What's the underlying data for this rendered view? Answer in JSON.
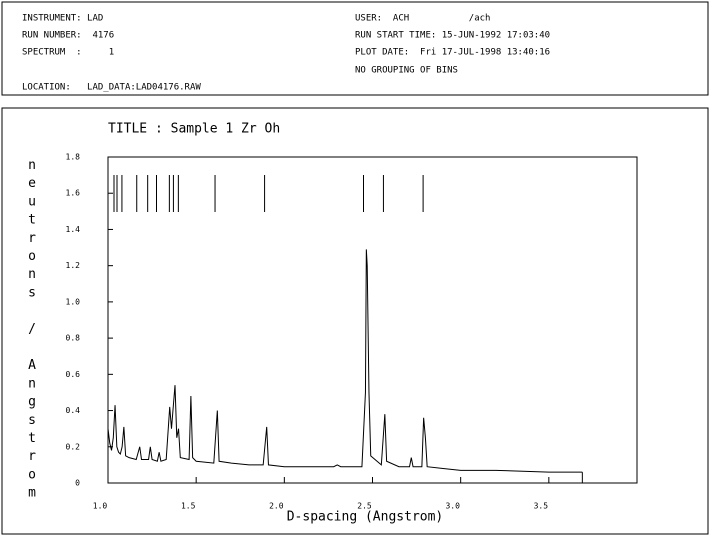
{
  "header": {
    "instrument": "INSTRUMENT: LAD",
    "run_number": "RUN NUMBER:  4176",
    "spectrum": "SPECTRUM  :     1",
    "location": "LOCATION:   LAD_DATA:LAD04176.RAW",
    "user": "USER:  ACH           /ach",
    "run_start": "RUN START TIME: 15-JUN-1992 17:03:40",
    "plot_date": "PLOT DATE:  Fri 17-JUL-1998 13:40:16",
    "grouping": "NO GROUPING OF BINS"
  },
  "chart_data": {
    "type": "line",
    "title": "TITLE : Sample 1 Zr Oh",
    "x_label": "D-spacing (Angstrom)",
    "y_label": "neutrons / Angstrom",
    "xlim": [
      1.0,
      4.0
    ],
    "ylim": [
      0,
      1.8
    ],
    "xticks": [
      {
        "value": 1.0,
        "label": "1.0"
      },
      1.5,
      {
        "value": 2.0,
        "label": "2.0"
      },
      2.5,
      {
        "value": 3.0,
        "label": "3.0"
      },
      3.5
    ],
    "yticks": [
      0,
      0.2,
      0.4,
      0.6,
      0.8,
      {
        "value": 1.0,
        "label": "1.0"
      },
      1.2,
      1.4,
      1.6,
      1.8
    ],
    "reflections": [
      1.034,
      1.051,
      1.079,
      1.163,
      1.225,
      1.275,
      1.348,
      1.371,
      1.399,
      1.607,
      1.888,
      2.449,
      2.562,
      2.787
    ],
    "x": [
      1.0,
      1.01,
      1.02,
      1.03,
      1.04,
      1.05,
      1.06,
      1.07,
      1.08,
      1.09,
      1.1,
      1.12,
      1.16,
      1.18,
      1.19,
      1.23,
      1.24,
      1.25,
      1.28,
      1.29,
      1.3,
      1.33,
      1.35,
      1.36,
      1.38,
      1.39,
      1.4,
      1.41,
      1.46,
      1.47,
      1.48,
      1.5,
      1.6,
      1.62,
      1.63,
      1.7,
      1.8,
      1.88,
      1.9,
      1.91,
      2.0,
      2.1,
      2.2,
      2.28,
      2.3,
      2.32,
      2.44,
      2.46,
      2.465,
      2.47,
      2.48,
      2.49,
      2.55,
      2.57,
      2.58,
      2.65,
      2.71,
      2.72,
      2.73,
      2.78,
      2.79,
      2.8,
      2.81,
      2.9,
      3.0,
      3.2,
      3.5,
      3.69
    ],
    "series": [
      {
        "color": "#000000",
        "values": [
          0.3,
          0.22,
          0.18,
          0.25,
          0.43,
          0.2,
          0.17,
          0.16,
          0.2,
          0.31,
          0.15,
          0.14,
          0.13,
          0.2,
          0.13,
          0.13,
          0.2,
          0.13,
          0.12,
          0.17,
          0.12,
          0.13,
          0.42,
          0.3,
          0.54,
          0.25,
          0.3,
          0.14,
          0.13,
          0.48,
          0.14,
          0.12,
          0.11,
          0.4,
          0.12,
          0.11,
          0.1,
          0.1,
          0.31,
          0.1,
          0.09,
          0.09,
          0.09,
          0.09,
          0.1,
          0.09,
          0.09,
          0.5,
          1.29,
          1.2,
          0.5,
          0.15,
          0.1,
          0.38,
          0.12,
          0.09,
          0.09,
          0.14,
          0.09,
          0.09,
          0.36,
          0.25,
          0.09,
          0.08,
          0.07,
          0.07,
          0.06,
          0.06
        ]
      }
    ]
  }
}
